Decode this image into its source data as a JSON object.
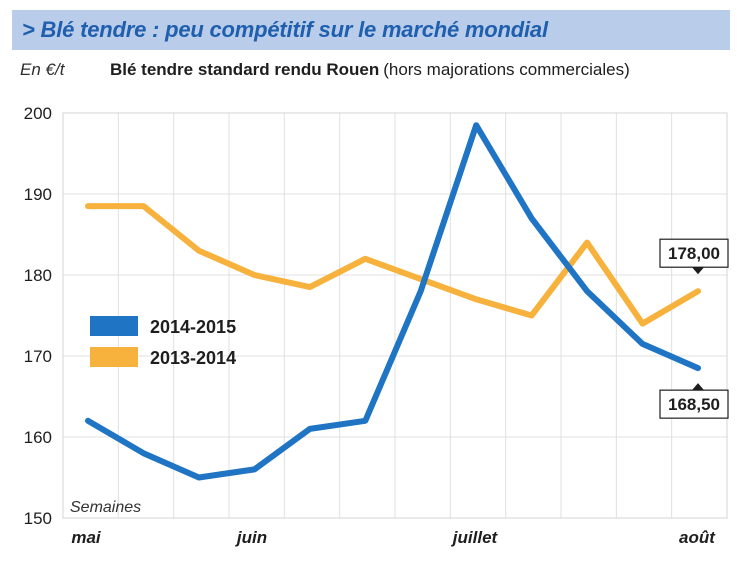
{
  "header": {
    "title": "> Blé tendre : peu compétitif sur le marché mondial"
  },
  "subtitle": {
    "unit": "En €/t",
    "main": "Blé tendre standard rendu Rouen",
    "note": "(hors majorations commerciales)"
  },
  "colors": {
    "header_bg": "#b9cdea",
    "header_text": "#1f5fae",
    "series_2014_2015": "#1f74c4",
    "series_2013_2014": "#f6b23c",
    "grid": "#e0e0e0"
  },
  "chart_data": {
    "type": "line",
    "title": "Blé tendre standard rendu Rouen (hors majorations commerciales)",
    "ylabel": "En €/t",
    "xlabel": "Semaines",
    "ylim": [
      150,
      200
    ],
    "yticks": [
      150,
      160,
      170,
      180,
      190,
      200
    ],
    "x_months": [
      "mai",
      "juin",
      "juillet",
      "août"
    ],
    "x": [
      0,
      1,
      2,
      3,
      4,
      5,
      6,
      7,
      8,
      9,
      10,
      11
    ],
    "grid": true,
    "legend_position": "left-middle",
    "series": [
      {
        "name": "2014-2015",
        "color": "#1f74c4",
        "values": [
          162,
          158,
          155,
          156,
          161,
          162,
          178,
          198.5,
          187,
          178,
          171.5,
          168.5
        ]
      },
      {
        "name": "2013-2014",
        "color": "#f6b23c",
        "values": [
          188.5,
          188.5,
          183,
          180,
          178.5,
          182,
          179.5,
          177,
          175,
          184,
          174,
          178
        ]
      }
    ],
    "annotations": [
      {
        "series": "2013-2014",
        "label": "178,00"
      },
      {
        "series": "2014-2015",
        "label": "168,50"
      }
    ]
  }
}
